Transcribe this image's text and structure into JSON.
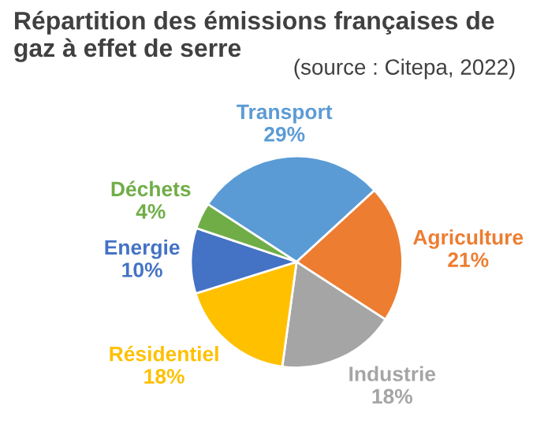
{
  "chart_data": {
    "type": "pie",
    "title": "Répartition des émissions françaises de gaz à effet de serre",
    "annotations": [
      "(source : Citepa, 2022)"
    ],
    "categories": [
      "Transport",
      "Agriculture",
      "Industrie",
      "Résidentiel",
      "Energie",
      "Déchets"
    ],
    "values": [
      29,
      21,
      18,
      18,
      10,
      4
    ],
    "value_labels": [
      "29%",
      "21%",
      "18%",
      "18%",
      "10%",
      "4%"
    ],
    "colors": [
      "#5b9bd5",
      "#ed7d31",
      "#a5a5a5",
      "#ffc000",
      "#4472c4",
      "#70ad47"
    ]
  }
}
